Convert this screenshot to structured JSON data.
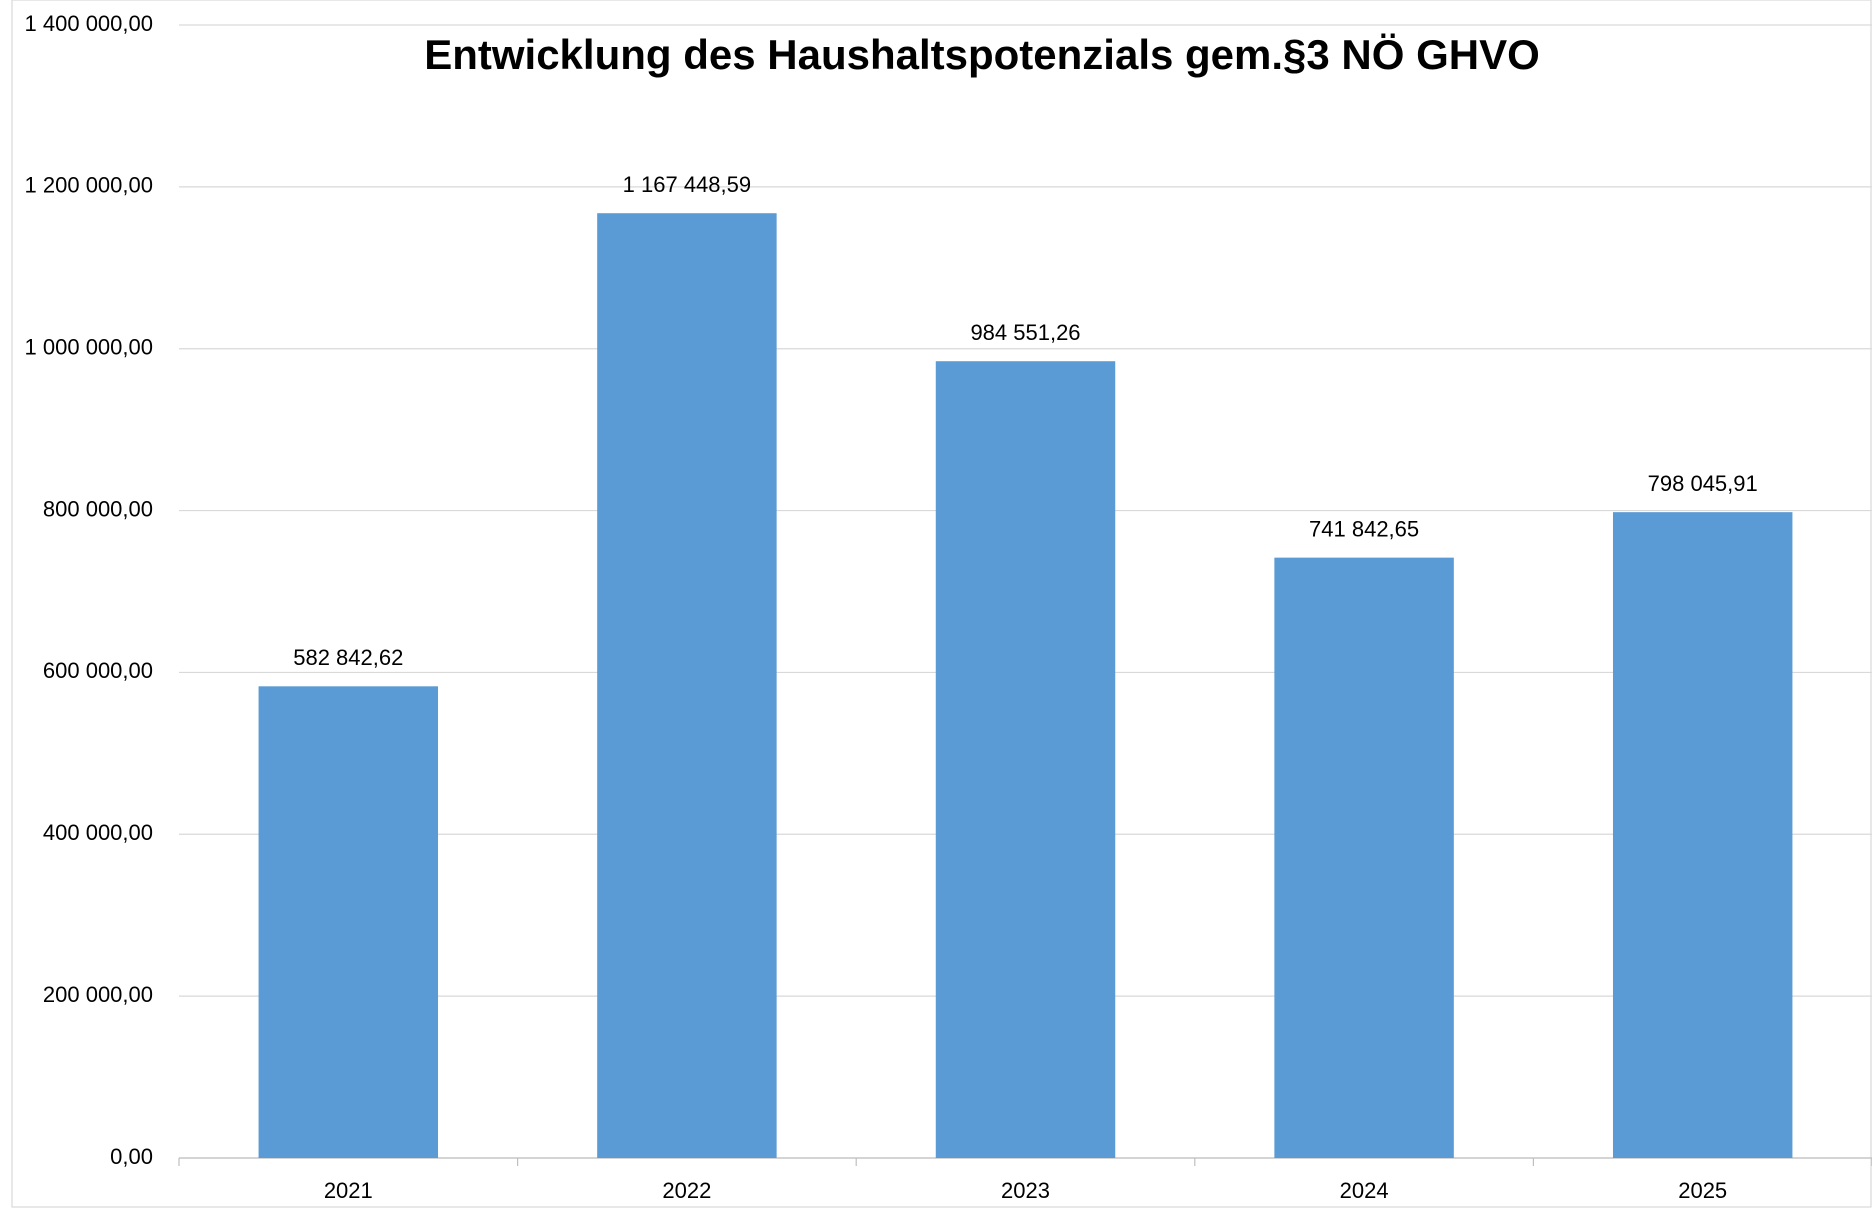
{
  "chart_data": {
    "type": "bar",
    "title": "Entwicklung des Haushaltspotenzials gem.§3 NÖ GHVO",
    "categories": [
      "2021",
      "2022",
      "2023",
      "2024",
      "2025"
    ],
    "values": [
      582842.62,
      1167448.59,
      984551.26,
      741842.65,
      798045.91
    ],
    "value_labels": [
      "582 842,62",
      "1 167 448,59",
      "984 551,26",
      "741 842,65",
      "798 045,91"
    ],
    "color": "#5b9bd5",
    "ylim": [
      0,
      1400000
    ],
    "yticks": [
      {
        "value": 0,
        "label": "0,00"
      },
      {
        "value": 200000,
        "label": "200 000,00"
      },
      {
        "value": 400000,
        "label": "400 000,00"
      },
      {
        "value": 600000,
        "label": "600 000,00"
      },
      {
        "value": 800000,
        "label": "800 000,00"
      },
      {
        "value": 1000000,
        "label": "1 000 000,00"
      },
      {
        "value": 1200000,
        "label": "1 200 000,00"
      },
      {
        "value": 1400000,
        "label": "1 400 000,00"
      }
    ],
    "grid": true
  }
}
